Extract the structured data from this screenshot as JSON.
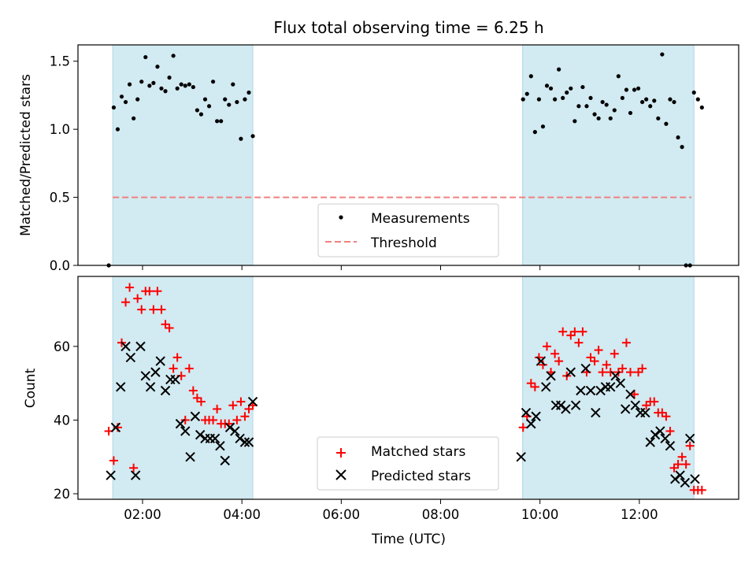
{
  "chart_data": [
    {
      "type": "scatter",
      "title": "Flux total observing time = 6.25 h",
      "xlabel": "",
      "ylabel": "Matched/Predicted stars",
      "ylim": [
        0,
        1.62
      ],
      "yticks": [
        0.0,
        0.5,
        1.0,
        1.5
      ],
      "ytick_labels": [
        "0.0",
        "0.5",
        "1.0",
        "1.5"
      ],
      "threshold": 0.5,
      "threshold_range": [
        1.4,
        13.05
      ],
      "legend": {
        "position": "bottom-center",
        "entries": [
          "Measurements",
          "Threshold"
        ]
      },
      "series": [
        {
          "name": "Measurements",
          "color": "#000000",
          "x": [
            1.32,
            1.42,
            1.5,
            1.58,
            1.66,
            1.74,
            1.82,
            1.9,
            1.98,
            2.06,
            2.14,
            2.22,
            2.3,
            2.38,
            2.46,
            2.54,
            2.62,
            2.7,
            2.78,
            2.86,
            2.94,
            3.02,
            3.1,
            3.18,
            3.26,
            3.34,
            3.42,
            3.5,
            3.58,
            3.66,
            3.74,
            3.82,
            3.9,
            3.98,
            4.06,
            4.14,
            4.22,
            9.66,
            9.74,
            9.82,
            9.9,
            9.98,
            10.06,
            10.14,
            10.22,
            10.3,
            10.38,
            10.46,
            10.54,
            10.62,
            10.7,
            10.78,
            10.86,
            10.94,
            11.02,
            11.1,
            11.18,
            11.26,
            11.34,
            11.42,
            11.5,
            11.58,
            11.66,
            11.74,
            11.82,
            11.9,
            11.98,
            12.06,
            12.14,
            12.22,
            12.3,
            12.38,
            12.46,
            12.54,
            12.62,
            12.7,
            12.78,
            12.86,
            12.94,
            13.02,
            13.1,
            13.18,
            13.26
          ],
          "y": [
            0.0,
            1.16,
            1.0,
            1.24,
            1.2,
            1.33,
            1.08,
            1.22,
            1.35,
            1.53,
            1.32,
            1.34,
            1.46,
            1.3,
            1.28,
            1.38,
            1.54,
            1.3,
            1.33,
            1.32,
            1.33,
            1.31,
            1.14,
            1.11,
            1.22,
            1.17,
            1.35,
            1.06,
            1.06,
            1.22,
            1.18,
            1.33,
            1.2,
            0.93,
            1.22,
            1.27,
            0.95,
            1.22,
            1.26,
            1.39,
            0.98,
            1.22,
            1.02,
            1.32,
            1.3,
            1.22,
            1.44,
            1.23,
            1.27,
            1.3,
            1.06,
            1.17,
            1.31,
            1.17,
            1.23,
            1.11,
            1.08,
            1.2,
            1.18,
            1.08,
            1.14,
            1.39,
            1.23,
            1.29,
            1.12,
            1.29,
            1.3,
            1.2,
            1.22,
            1.17,
            1.21,
            1.08,
            1.55,
            1.04,
            1.22,
            1.2,
            0.94,
            0.87,
            0.0,
            0.0,
            1.27,
            1.22,
            1.16
          ],
          "note": "measurement values transcribed from plotted points"
        }
      ]
    },
    {
      "type": "scatter",
      "xlabel": "Time (UTC)",
      "ylabel": "Count",
      "xlim": [
        0.7,
        14.0
      ],
      "xticks": [
        2,
        4,
        6,
        8,
        10,
        12
      ],
      "xtick_labels": [
        "02:00",
        "04:00",
        "06:00",
        "08:00",
        "10:00",
        "12:00"
      ],
      "ylim": [
        18.5,
        79
      ],
      "yticks": [
        20,
        40,
        60
      ],
      "ytick_labels": [
        "20",
        "40",
        "60"
      ],
      "shaded_intervals": [
        [
          1.4,
          4.22
        ],
        [
          9.65,
          13.1
        ]
      ],
      "shade_color": "#add8e6",
      "legend": {
        "position": "bottom-center",
        "entries": [
          "Matched stars",
          "Predicted stars"
        ]
      },
      "series": [
        {
          "name": "Matched stars",
          "color": "#ff0000",
          "marker": "plus",
          "x": [
            1.32,
            1.42,
            1.5,
            1.58,
            1.66,
            1.74,
            1.82,
            1.9,
            1.98,
            2.06,
            2.14,
            2.22,
            2.3,
            2.38,
            2.46,
            2.54,
            2.62,
            2.7,
            2.78,
            2.86,
            2.94,
            3.02,
            3.1,
            3.18,
            3.26,
            3.34,
            3.42,
            3.5,
            3.58,
            3.66,
            3.74,
            3.82,
            3.9,
            3.98,
            4.06,
            4.14,
            4.22,
            9.66,
            9.74,
            9.82,
            9.9,
            9.98,
            10.06,
            10.14,
            10.22,
            10.3,
            10.38,
            10.46,
            10.54,
            10.62,
            10.7,
            10.78,
            10.86,
            10.94,
            11.02,
            11.1,
            11.18,
            11.26,
            11.34,
            11.42,
            11.5,
            11.58,
            11.66,
            11.74,
            11.82,
            11.9,
            11.98,
            12.06,
            12.14,
            12.22,
            12.3,
            12.38,
            12.46,
            12.54,
            12.62,
            12.7,
            12.78,
            12.86,
            12.94,
            13.02,
            13.1,
            13.18,
            13.26
          ],
          "y": [
            37,
            29,
            38,
            61,
            72,
            76,
            27,
            73,
            70,
            75,
            75,
            70,
            75,
            70,
            66,
            65,
            54,
            57,
            52,
            40,
            54,
            48,
            46,
            45,
            40,
            40,
            40,
            43,
            39,
            39,
            39,
            44,
            40,
            45,
            41,
            43,
            44,
            38,
            41,
            50,
            49,
            57,
            55,
            60,
            53,
            58,
            56,
            64,
            52,
            63,
            64,
            61,
            64,
            53,
            57,
            56,
            59,
            53,
            55,
            53,
            58,
            53,
            54,
            61,
            53,
            47,
            53,
            54,
            44,
            45,
            45,
            42,
            42,
            41,
            37,
            27,
            28,
            30,
            28,
            33,
            21,
            21,
            21
          ],
          "note": "counts transcribed from plotted points"
        },
        {
          "name": "Predicted stars",
          "color": "#000000",
          "marker": "x",
          "x": [
            1.36,
            1.46,
            1.56,
            1.66,
            1.76,
            1.86,
            1.96,
            2.06,
            2.16,
            2.26,
            2.36,
            2.46,
            2.56,
            2.66,
            2.76,
            2.86,
            2.96,
            3.06,
            3.16,
            3.26,
            3.36,
            3.46,
            3.56,
            3.66,
            3.76,
            3.86,
            3.96,
            4.06,
            4.14,
            4.22,
            9.62,
            9.72,
            9.82,
            9.92,
            10.02,
            10.12,
            10.22,
            10.32,
            10.42,
            10.52,
            10.62,
            10.72,
            10.82,
            10.92,
            11.02,
            11.12,
            11.22,
            11.32,
            11.42,
            11.52,
            11.62,
            11.72,
            11.82,
            11.92,
            12.02,
            12.12,
            12.22,
            12.32,
            12.42,
            12.52,
            12.62,
            12.72,
            12.82,
            12.92,
            13.02,
            13.12
          ],
          "y": [
            25,
            38,
            49,
            60,
            57,
            25,
            60,
            52,
            49,
            53,
            56,
            48,
            51,
            51,
            39,
            37,
            30,
            41,
            36,
            35,
            35,
            35,
            33,
            29,
            38,
            37,
            35,
            34,
            34,
            45,
            30,
            42,
            39,
            41,
            56,
            49,
            52,
            44,
            44,
            43,
            53,
            44,
            48,
            54,
            48,
            42,
            48,
            49,
            49,
            52,
            50,
            43,
            47,
            44,
            42,
            42,
            34,
            36,
            37,
            35,
            33,
            24,
            25,
            23,
            35,
            24
          ]
        }
      ]
    }
  ]
}
